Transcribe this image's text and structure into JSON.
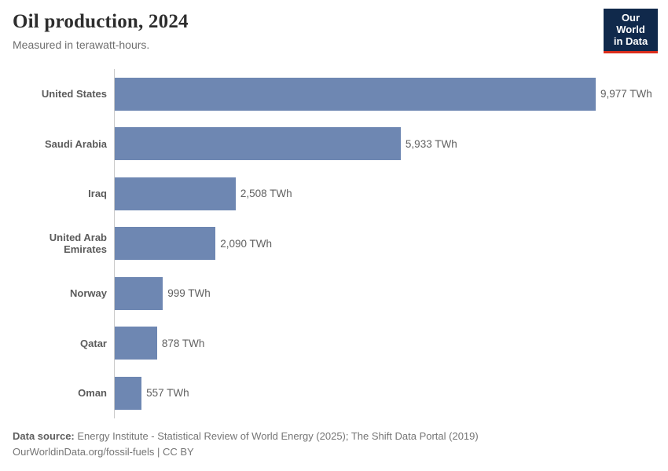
{
  "header": {
    "title": "Oil production, 2024",
    "subtitle": "Measured in terawatt-hours.",
    "logo": {
      "line1": "Our World",
      "line2": "in Data",
      "bg_color": "#10294b",
      "accent_color": "#dc2e1c"
    }
  },
  "chart_data": {
    "type": "bar",
    "orientation": "horizontal",
    "title": "Oil production, 2024",
    "subtitle": "Measured in terawatt-hours.",
    "unit": "TWh",
    "xlim": [
      0,
      9977
    ],
    "grid": false,
    "bar_color": "#6e87b2",
    "axis_color": "#c9c9c9",
    "categories": [
      "United States",
      "Saudi Arabia",
      "Iraq",
      "United Arab Emirates",
      "Norway",
      "Qatar",
      "Oman"
    ],
    "values": [
      9977,
      5933,
      2508,
      2090,
      999,
      878,
      557
    ],
    "value_labels": [
      "9,977 TWh",
      "5,933 TWh",
      "2,508 TWh",
      "2,090 TWh",
      "999 TWh",
      "878 TWh",
      "557 TWh"
    ]
  },
  "footer": {
    "datasource_label": "Data source:",
    "datasource_text": " Energy Institute - Statistical Review of World Energy (2025); The Shift Data Portal (2019)",
    "link_line": "OurWorldinData.org/fossil-fuels | CC BY"
  }
}
